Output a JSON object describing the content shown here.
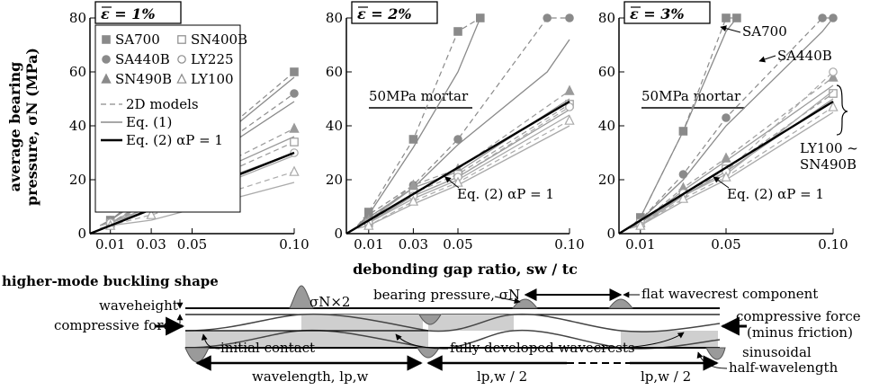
{
  "chart_data": [
    {
      "type": "line",
      "panel_title": "ε = 1%",
      "x_ticks": [
        "0.01",
        "0.03",
        "0.05",
        "0.10"
      ],
      "y_ticks": [
        "0",
        "20",
        "40",
        "60",
        "80"
      ],
      "xlim": [
        0,
        0.1
      ],
      "ylim": [
        0,
        80
      ],
      "legend": {
        "series_labels": [
          "SA700",
          "SN400B",
          "SA440B",
          "LY225",
          "SN490B",
          "LY100"
        ],
        "line_labels": [
          "2D models",
          "Eq. (1)",
          "Eq. (2) αP = 1"
        ]
      },
      "series": [
        {
          "name": "SA700",
          "marker": "square-filled",
          "x": [
            0.005,
            0.01,
            0.03,
            0.05,
            0.1
          ],
          "model": [
            3,
            5,
            17,
            28,
            60
          ],
          "eq1": [
            3,
            5,
            16,
            27,
            58
          ]
        },
        {
          "name": "SA440B",
          "marker": "circle-filled",
          "x": [
            0.005,
            0.01,
            0.03,
            0.05,
            0.1
          ],
          "model": [
            3,
            5,
            16,
            25,
            52
          ],
          "eq1": [
            3,
            5,
            15,
            24,
            49
          ]
        },
        {
          "name": "SN490B",
          "marker": "triangle-filled",
          "x": [
            0.005,
            0.01,
            0.03,
            0.05,
            0.1
          ],
          "model": [
            3,
            4,
            13,
            20,
            39
          ],
          "eq1": [
            3,
            4,
            12,
            19,
            36
          ]
        },
        {
          "name": "SN400B",
          "marker": "square-open",
          "x": [
            0.005,
            0.01,
            0.03,
            0.05,
            0.1
          ],
          "model": [
            3,
            4,
            11,
            17,
            34
          ],
          "eq1": [
            3,
            4,
            10,
            16,
            30
          ]
        },
        {
          "name": "LY225",
          "marker": "circle-open",
          "x": [
            0.005,
            0.01,
            0.03,
            0.05,
            0.1
          ],
          "model": [
            3,
            4,
            10,
            15,
            30
          ],
          "eq1": [
            3,
            4,
            9,
            14,
            29
          ]
        },
        {
          "name": "LY100",
          "marker": "triangle-open",
          "x": [
            0.005,
            0.01,
            0.03,
            0.05,
            0.1
          ],
          "model": [
            2,
            3,
            7,
            11,
            23
          ],
          "eq1": [
            2,
            3,
            5,
            9,
            19
          ]
        }
      ],
      "eq2_line": {
        "x": [
          0,
          0.1
        ],
        "y": [
          0,
          30
        ]
      }
    },
    {
      "type": "line",
      "panel_title": "ε = 2%",
      "x_ticks": [
        "0.01",
        "0.03",
        "0.05",
        "0.10"
      ],
      "y_ticks": [
        "0",
        "20",
        "40",
        "60",
        "80"
      ],
      "xlim": [
        0,
        0.1
      ],
      "ylim": [
        0,
        80
      ],
      "reference_label": "50MPa mortar",
      "reference_value": 50,
      "annotation": "Eq. (2) αP = 1",
      "series": [
        {
          "name": "SA700",
          "marker": "square-filled",
          "x": [
            0.005,
            0.01,
            0.03,
            0.05,
            0.06
          ],
          "model": [
            3,
            8,
            35,
            75,
            80
          ],
          "eq1": [
            3,
            7,
            32,
            60,
            80
          ]
        },
        {
          "name": "SA440B",
          "marker": "circle-filled",
          "x": [
            0.005,
            0.01,
            0.03,
            0.05,
            0.09,
            0.1
          ],
          "model": [
            3,
            7,
            18,
            35,
            80,
            80
          ],
          "eq1": [
            3,
            6,
            17,
            33,
            60,
            72
          ]
        },
        {
          "name": "SN490B",
          "marker": "triangle-filled",
          "x": [
            0.005,
            0.01,
            0.03,
            0.05,
            0.1
          ],
          "model": [
            3,
            5,
            18,
            24,
            53
          ],
          "eq1": [
            3,
            5,
            17,
            23,
            50
          ]
        },
        {
          "name": "SN400B",
          "marker": "square-open",
          "x": [
            0.005,
            0.01,
            0.03,
            0.05,
            0.1
          ],
          "model": [
            3,
            4,
            15,
            22,
            48
          ],
          "eq1": [
            3,
            4,
            14,
            21,
            46
          ]
        },
        {
          "name": "LY225",
          "marker": "circle-open",
          "x": [
            0.005,
            0.01,
            0.03,
            0.05,
            0.1
          ],
          "model": [
            3,
            4,
            14,
            21,
            47
          ],
          "eq1": [
            3,
            4,
            13,
            20,
            44
          ]
        },
        {
          "name": "LY100",
          "marker": "triangle-open",
          "x": [
            0.005,
            0.01,
            0.03,
            0.05,
            0.1
          ],
          "model": [
            2,
            3,
            12,
            19,
            42
          ],
          "eq1": [
            2,
            3,
            11,
            18,
            40
          ]
        }
      ],
      "eq2_line": {
        "x": [
          0,
          0.1
        ],
        "y": [
          0,
          49
        ]
      }
    },
    {
      "type": "line",
      "panel_title": "ε = 3%",
      "x_ticks": [
        "0.01",
        "0.05",
        "0.10"
      ],
      "y_ticks": [
        "0",
        "20",
        "40",
        "60",
        "80"
      ],
      "xlim": [
        0,
        0.1
      ],
      "ylim": [
        0,
        80
      ],
      "reference_label": "50MPa mortar",
      "reference_value": 50,
      "annotation": "Eq. (2) αP = 1",
      "callouts": [
        "SA700",
        "SA440B",
        "LY100 ~",
        "SN490B"
      ],
      "series": [
        {
          "name": "SA700",
          "marker": "square-filled",
          "x": [
            0.005,
            0.01,
            0.03,
            0.05,
            0.055
          ],
          "model": [
            2,
            6,
            38,
            80,
            80
          ],
          "eq1": [
            2,
            6,
            38,
            75,
            80
          ]
        },
        {
          "name": "SA440B",
          "marker": "circle-filled",
          "x": [
            0.005,
            0.01,
            0.03,
            0.05,
            0.095,
            0.1
          ],
          "model": [
            2,
            5,
            22,
            43,
            80,
            80
          ],
          "eq1": [
            2,
            5,
            20,
            40,
            75,
            80
          ]
        },
        {
          "name": "SN490B",
          "marker": "triangle-filled",
          "x": [
            0.005,
            0.01,
            0.03,
            0.05,
            0.1
          ],
          "model": [
            2,
            4,
            17,
            28,
            58
          ],
          "eq1": [
            2,
            4,
            16,
            27,
            55
          ]
        },
        {
          "name": "SN400B",
          "marker": "square-open",
          "x": [
            0.005,
            0.01,
            0.03,
            0.05,
            0.1
          ],
          "model": [
            2,
            4,
            15,
            24,
            52
          ],
          "eq1": [
            2,
            4,
            14,
            23,
            50
          ]
        },
        {
          "name": "LY225",
          "marker": "circle-open",
          "x": [
            0.005,
            0.01,
            0.03,
            0.05,
            0.1
          ],
          "model": [
            2,
            3,
            15,
            23,
            60
          ],
          "eq1": [
            2,
            3,
            14,
            22,
            53
          ]
        },
        {
          "name": "LY100",
          "marker": "triangle-open",
          "x": [
            0.005,
            0.01,
            0.03,
            0.05,
            0.1
          ],
          "model": [
            2,
            3,
            13,
            21,
            47
          ],
          "eq1": [
            2,
            3,
            12,
            20,
            45
          ]
        }
      ],
      "eq2_line": {
        "x": [
          0,
          0.1
        ],
        "y": [
          0,
          49
        ]
      }
    }
  ],
  "y_axis_title_line1": "average bearing",
  "y_axis_title_line2": "pressure, σN (MPa)",
  "x_axis_title": "debonding gap ratio, sw / tc",
  "diagram": {
    "title": "higher-mode buckling shape",
    "labels": {
      "waveheight": "waveheight",
      "compressive_left": "compressive force",
      "sigma2": "σN×2",
      "bearing": "bearing pressure, σN",
      "flat": "flat wavecrest component",
      "compressive_right1": "compressive force",
      "compressive_right2": "(minus friction)",
      "initial": "initial contact",
      "fully": "fully developed wavecrests",
      "sinusoidal1": "sinusoidal",
      "sinusoidal2": "half-wavelength",
      "wavelength": "wavelength, lp,w",
      "half1": "lp,w / 2",
      "half2": "lp,w / 2"
    }
  },
  "colors": {
    "gray": "#8a8a8a",
    "light": "#b0b0b0",
    "fill": "#cfcfcf",
    "black": "#000000"
  }
}
